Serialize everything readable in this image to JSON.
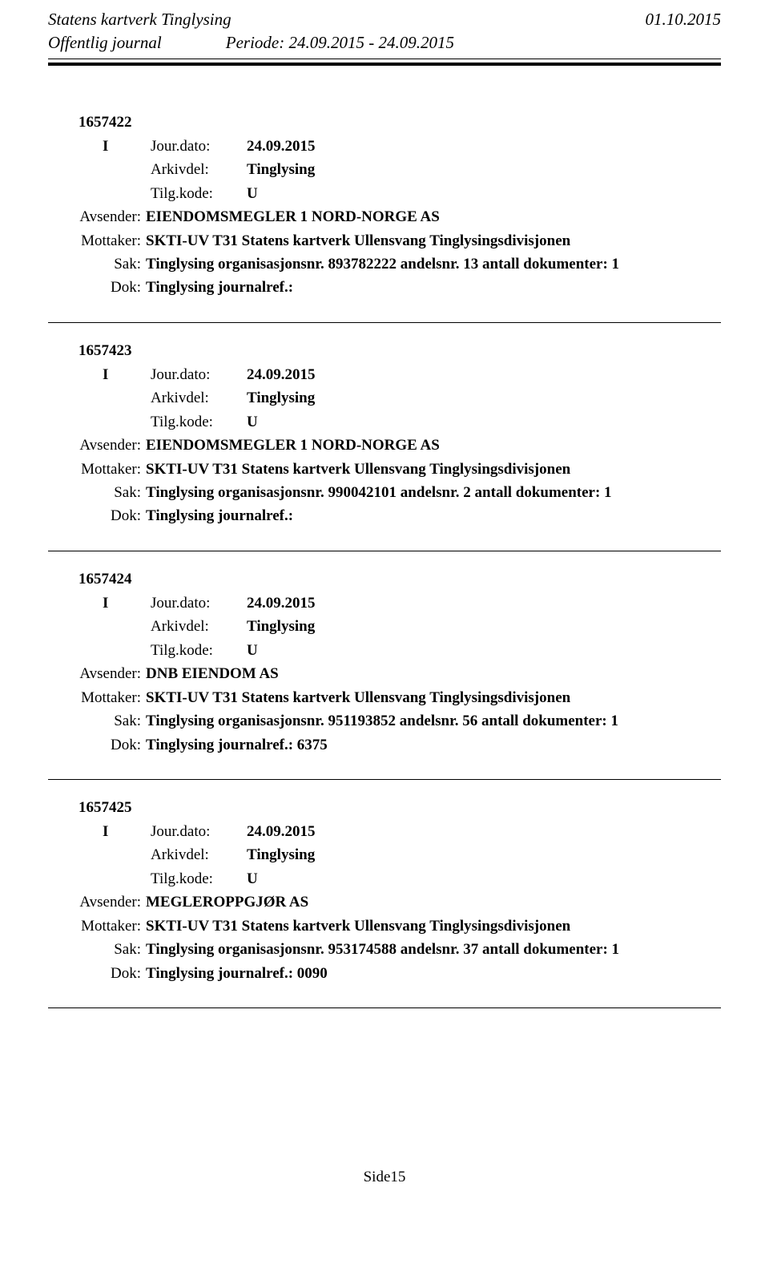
{
  "header": {
    "title": "Statens kartverk Tinglysing",
    "date": "01.10.2015",
    "subtitle": "Offentlig journal",
    "period_label": "Periode:",
    "period_value": "24.09.2015 - 24.09.2015"
  },
  "labels": {
    "jour_dato": "Jour.dato:",
    "arkivdel": "Arkivdel:",
    "tilg_kode": "Tilg.kode:",
    "avsender": "Avsender:",
    "mottaker": "Mottaker:",
    "sak": "Sak:",
    "dok": "Dok:"
  },
  "entries": [
    {
      "id": "1657422",
      "type": "I",
      "jour_dato": "24.09.2015",
      "arkivdel": "Tinglysing",
      "tilg_kode": "U",
      "avsender": "EIENDOMSMEGLER 1 NORD-NORGE AS",
      "mottaker": "SKTI-UV T31 Statens kartverk Ullensvang Tinglysingsdivisjonen",
      "sak": "Tinglysing organisasjonsnr. 893782222 andelsnr. 13 antall dokumenter: 1",
      "dok": "Tinglysing journalref.:"
    },
    {
      "id": "1657423",
      "type": "I",
      "jour_dato": "24.09.2015",
      "arkivdel": "Tinglysing",
      "tilg_kode": "U",
      "avsender": "EIENDOMSMEGLER 1 NORD-NORGE AS",
      "mottaker": "SKTI-UV T31 Statens kartverk Ullensvang Tinglysingsdivisjonen",
      "sak": "Tinglysing organisasjonsnr. 990042101 andelsnr. 2 antall dokumenter: 1",
      "dok": "Tinglysing journalref.:"
    },
    {
      "id": "1657424",
      "type": "I",
      "jour_dato": "24.09.2015",
      "arkivdel": "Tinglysing",
      "tilg_kode": "U",
      "avsender": "DNB EIENDOM AS",
      "mottaker": "SKTI-UV T31 Statens kartverk Ullensvang Tinglysingsdivisjonen",
      "sak": "Tinglysing organisasjonsnr. 951193852 andelsnr. 56 antall dokumenter: 1",
      "dok": "Tinglysing journalref.: 6375"
    },
    {
      "id": "1657425",
      "type": "I",
      "jour_dato": "24.09.2015",
      "arkivdel": "Tinglysing",
      "tilg_kode": "U",
      "avsender": "MEGLEROPPGJØR AS",
      "mottaker": "SKTI-UV T31 Statens kartverk Ullensvang Tinglysingsdivisjonen",
      "sak": "Tinglysing organisasjonsnr. 953174588 andelsnr. 37 antall dokumenter: 1",
      "dok": "Tinglysing journalref.: 0090"
    }
  ],
  "footer": {
    "page": "Side15"
  },
  "colors": {
    "text": "#000000",
    "background": "#ffffff"
  },
  "typography": {
    "font_family": "Times New Roman",
    "header_fontsize_pt": 16,
    "body_fontsize_pt": 14
  }
}
